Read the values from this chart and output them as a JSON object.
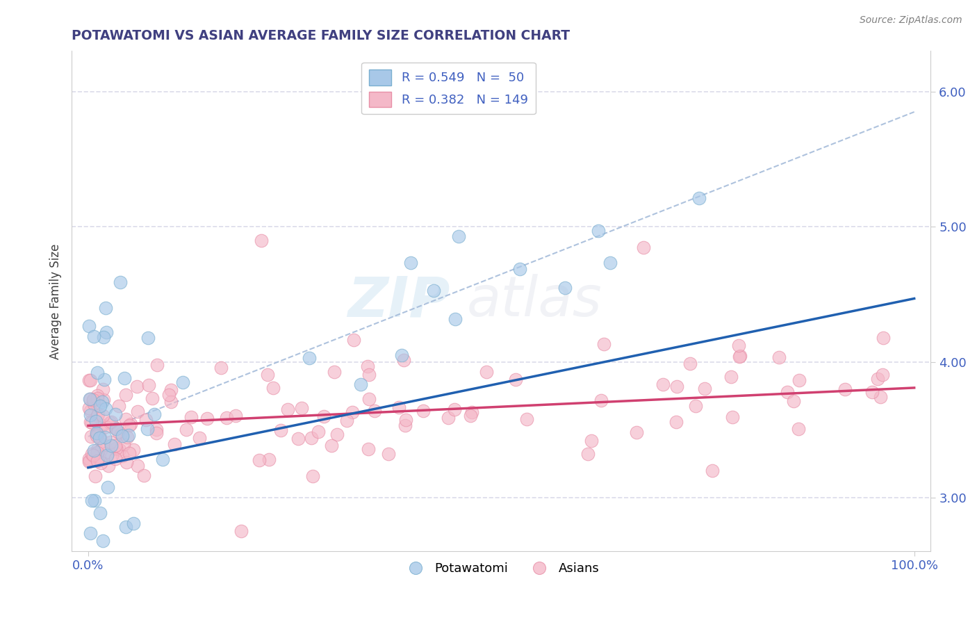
{
  "title": "POTAWATOMI VS ASIAN AVERAGE FAMILY SIZE CORRELATION CHART",
  "source_text": "Source: ZipAtlas.com",
  "ylabel": "Average Family Size",
  "xlim": [
    -2,
    102
  ],
  "ylim": [
    2.6,
    6.3
  ],
  "yticks": [
    3.0,
    4.0,
    5.0,
    6.0
  ],
  "xticklabels": [
    "0.0%",
    "100.0%"
  ],
  "yticklabels": [
    "3.00",
    "4.00",
    "5.00",
    "6.00"
  ],
  "legend_r1": "R = 0.549",
  "legend_n1": "N =  50",
  "legend_r2": "R = 0.382",
  "legend_n2": "N = 149",
  "blue_dot_color": "#a8c8e8",
  "blue_dot_edge": "#7aafd0",
  "pink_dot_color": "#f4b8c8",
  "pink_dot_edge": "#e890a8",
  "blue_line_color": "#2060b0",
  "pink_line_color": "#d04070",
  "ref_line_color": "#a0b8d8",
  "grid_color": "#d8d8e8",
  "title_color": "#404080",
  "tick_label_color": "#4060c0",
  "ylabel_color": "#404040",
  "source_color": "#808080",
  "watermark_zip_color": "#90c0e0",
  "watermark_atlas_color": "#c0c8d8"
}
